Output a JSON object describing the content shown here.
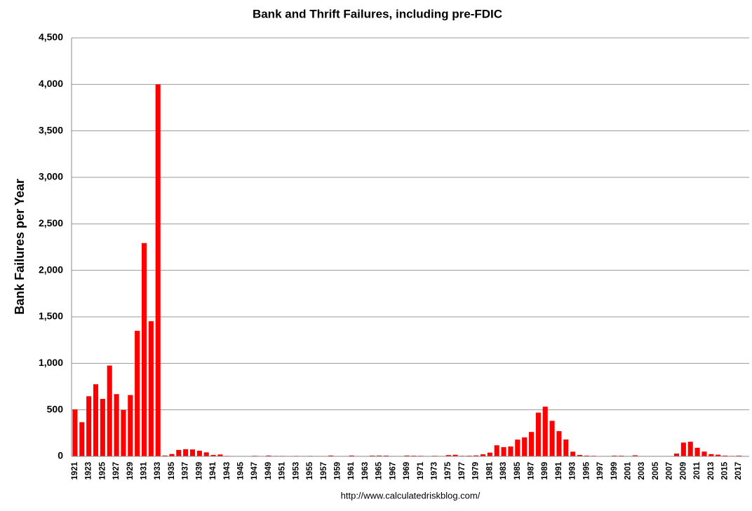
{
  "chart_data": {
    "type": "bar",
    "title": "Bank and Thrift Failures, including pre-FDIC",
    "y_label": "Bank Failures per Year",
    "source": "http://www.calculatedriskblog.com/",
    "categories": [
      "1921",
      null,
      "1923",
      null,
      "1925",
      null,
      "1927",
      null,
      "1929",
      null,
      "1931",
      null,
      "1933",
      null,
      "1935",
      null,
      "1937",
      null,
      "1939",
      null,
      "1941",
      null,
      "1943",
      null,
      "1945",
      null,
      "1947",
      null,
      "1949",
      null,
      "1951",
      null,
      "1953",
      null,
      "1955",
      null,
      "1957",
      null,
      "1959",
      null,
      "1961",
      null,
      "1963",
      null,
      "1965",
      null,
      "1967",
      null,
      "1969",
      null,
      "1971",
      null,
      "1973",
      null,
      "1975",
      null,
      "1977",
      null,
      "1979",
      null,
      "1981",
      null,
      "1983",
      null,
      "1985",
      null,
      "1987",
      null,
      "1989",
      null,
      "1991",
      null,
      "1993",
      null,
      "1995",
      null,
      "1997",
      null,
      "1999",
      null,
      "2001",
      null,
      "2003",
      null,
      "2005",
      null,
      "2007",
      null,
      "2009",
      null,
      "2011",
      null,
      "2013",
      null,
      "2015",
      null,
      "2017",
      null
    ],
    "values": [
      505,
      367,
      646,
      775,
      618,
      976,
      669,
      498,
      659,
      1350,
      2293,
      1453,
      4000,
      9,
      25,
      69,
      77,
      74,
      60,
      43,
      15,
      20,
      5,
      2,
      1,
      2,
      6,
      3,
      9,
      5,
      5,
      4,
      5,
      4,
      5,
      3,
      3,
      9,
      3,
      3,
      9,
      3,
      2,
      8,
      9,
      8,
      4,
      3,
      9,
      7,
      6,
      3,
      6,
      4,
      14,
      17,
      6,
      7,
      10,
      22,
      40,
      119,
      99,
      106,
      180,
      204,
      262,
      470,
      534,
      382,
      271,
      181,
      50,
      15,
      8,
      6,
      1,
      3,
      8,
      7,
      4,
      11,
      3,
      4,
      0,
      0,
      3,
      30,
      148,
      157,
      92,
      51,
      24,
      18,
      8,
      5,
      8,
      0
    ],
    "color": "#ff0000",
    "ylim": [
      0,
      4500
    ],
    "yticks": [
      0,
      500,
      {
        "value": 1000,
        "label": "1,000"
      },
      {
        "value": 1500,
        "label": "1,500"
      },
      {
        "value": 2000,
        "label": "2,000"
      },
      {
        "value": 2500,
        "label": "2,500"
      },
      {
        "value": 3000,
        "label": "3,000"
      },
      {
        "value": 3500,
        "label": "3,500"
      },
      {
        "value": 4000,
        "label": "4,000"
      },
      {
        "value": 4500,
        "label": "4,500"
      }
    ],
    "grid": true
  }
}
